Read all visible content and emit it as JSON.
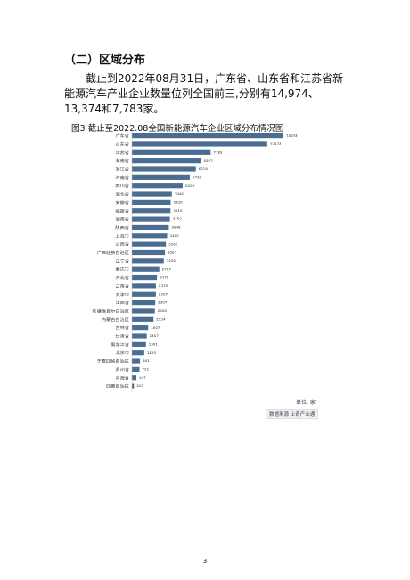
{
  "section_heading": "（二）区域分布",
  "paragraph": "截止到2022年08月31日，广东省、山东省和江苏省新能源汽车产业企业数量位列全国前三,分别有14,974、13,374和7,783家。",
  "figure_title": "图3 截止至2022.08全国新能源汽车企业区域分布情况图",
  "unit_label": "单位: 家",
  "source_label": "数据来源 上奇产业通",
  "page_number": "3",
  "colors": {
    "bar": "#4a6d91"
  },
  "chart_data": {
    "type": "bar",
    "orientation": "horizontal",
    "title": "图3 截止至2022.08全国新能源汽车企业区域分布情况图",
    "categories": [
      "广东省",
      "山东省",
      "江苏省",
      "海南省",
      "浙江省",
      "河南省",
      "四川省",
      "湖北省",
      "安徽省",
      "福建省",
      "湖南省",
      "陕西省",
      "上海市",
      "山西省",
      "广西壮族自治区",
      "辽宁省",
      "重庆市",
      "河北省",
      "云南省",
      "天津市",
      "江西省",
      "新疆维吾尔自治区",
      "内蒙古自治区",
      "吉林省",
      "甘肃省",
      "黑龙江省",
      "北京市",
      "宁夏回族自治区",
      "贵州省",
      "青海省",
      "西藏自治区"
    ],
    "values": [
      14974,
      13374,
      7783,
      6822,
      6318,
      5719,
      5020,
      3946,
      3829,
      3818,
      3752,
      3648,
      3482,
      3362,
      3267,
      3150,
      2707,
      2479,
      2370,
      2367,
      2307,
      2268,
      2134,
      1607,
      1467,
      1391,
      1220,
      801,
      751,
      447,
      205
    ],
    "value_labels": [
      "14974",
      "13374",
      "7783",
      "6822",
      "6318",
      "5719",
      "5020",
      "3946",
      "3829",
      "3818",
      "3752",
      "3648",
      "3482",
      "3362",
      "3267",
      "3150",
      "2707",
      "2479",
      "2370",
      "2367",
      "2307",
      "2268",
      "2134",
      "1607",
      "1467",
      "1391",
      "1220",
      "801",
      "751",
      "447",
      "205"
    ],
    "legend": "none",
    "grid": false
  }
}
